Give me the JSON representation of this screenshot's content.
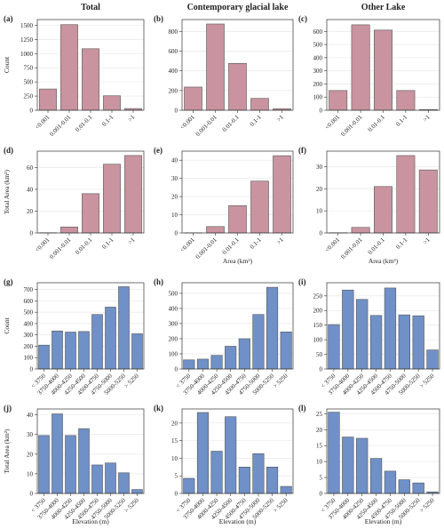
{
  "chart_data": [
    {
      "type": "bar",
      "label": "(a)",
      "title": "Total",
      "ylabel": "Count",
      "categories": [
        "<0.001",
        "0.001-0.01",
        "0.01-0.1",
        "0.1-1",
        ">1"
      ],
      "values": [
        375,
        1510,
        1085,
        255,
        30
      ],
      "color": "#c9949f",
      "ylim": [
        0,
        1600
      ],
      "yticks": [
        0,
        250,
        500,
        750,
        1000,
        1250,
        1500
      ],
      "grid": true
    },
    {
      "type": "bar",
      "label": "(b)",
      "title": "Contemporary glacial lake",
      "categories": [
        "<0.001",
        "0.001-0.01",
        "0.01-0.1",
        "0.1-1",
        ">1"
      ],
      "values": [
        235,
        875,
        475,
        120,
        15
      ],
      "color": "#c9949f",
      "ylim": [
        0,
        920
      ],
      "yticks": [
        0,
        200,
        400,
        600,
        800
      ],
      "grid": true
    },
    {
      "type": "bar",
      "label": "(c)",
      "title": "Other Lake",
      "categories": [
        "<0.001",
        "0.001-0.01",
        "0.01-0.1",
        "0.1-1",
        ">1"
      ],
      "values": [
        150,
        650,
        610,
        150,
        5
      ],
      "color": "#c9949f",
      "ylim": [
        0,
        690
      ],
      "yticks": [
        0,
        100,
        200,
        300,
        400,
        500,
        600
      ],
      "grid": true
    },
    {
      "type": "bar",
      "label": "(d)",
      "ylabel": "Total Area (km²)",
      "categories": [
        "<0.001",
        "0.001-0.01",
        "0.01-0.1",
        "0.1-1",
        ">1"
      ],
      "values": [
        0.2,
        5.5,
        36,
        63,
        71
      ],
      "color": "#c9949f",
      "ylim": [
        0,
        75
      ],
      "yticks": [
        0,
        20,
        40,
        60
      ],
      "grid": true
    },
    {
      "type": "bar",
      "label": "(e)",
      "xlabel": "Area (km²)",
      "categories": [
        "<0.001",
        "0.001-0.01",
        "0.01-0.1",
        "0.1-1",
        ">1"
      ],
      "values": [
        0.1,
        3.5,
        15,
        28.5,
        42.5
      ],
      "color": "#c9949f",
      "ylim": [
        0,
        45
      ],
      "yticks": [
        0,
        10,
        20,
        30,
        40
      ],
      "grid": true
    },
    {
      "type": "bar",
      "label": "(f)",
      "xlabel": "Area (km²)",
      "categories": [
        "<0.001",
        "0.001-0.01",
        "0.01-0.1",
        "0.1-1",
        ">1"
      ],
      "values": [
        0.1,
        2.5,
        21,
        35,
        28.5
      ],
      "color": "#c9949f",
      "ylim": [
        0,
        37
      ],
      "yticks": [
        0,
        10,
        20,
        30
      ],
      "grid": true
    },
    {
      "type": "bar",
      "label": "(g)",
      "ylabel": "Count",
      "categories": [
        "< 3750",
        "3750-4000",
        "4000-4250",
        "4250-4500",
        "4500-4750",
        "4750-5000",
        "5000-5250",
        "> 5250"
      ],
      "values": [
        210,
        335,
        325,
        330,
        480,
        545,
        725,
        310
      ],
      "color": "#7090c8",
      "ylim": [
        0,
        760
      ],
      "yticks": [
        0,
        100,
        200,
        300,
        400,
        500,
        600,
        700
      ],
      "grid": true
    },
    {
      "type": "bar",
      "label": "(h)",
      "categories": [
        "< 3750",
        "3750-4000",
        "4000-4250",
        "4250-4500",
        "4500-4750",
        "4750-5000",
        "5000-5250",
        "> 5250"
      ],
      "values": [
        60,
        65,
        90,
        150,
        200,
        360,
        540,
        245
      ],
      "color": "#7090c8",
      "ylim": [
        0,
        570
      ],
      "yticks": [
        0,
        100,
        200,
        300,
        400,
        500
      ],
      "grid": true
    },
    {
      "type": "bar",
      "label": "(i)",
      "categories": [
        "< 3750",
        "3750-4000",
        "4000-4250",
        "4250-4500",
        "4500-4750",
        "4750-5000",
        "5000-5250",
        "> 5250"
      ],
      "values": [
        152,
        270,
        238,
        183,
        277,
        185,
        182,
        65
      ],
      "color": "#7090c8",
      "ylim": [
        0,
        295
      ],
      "yticks": [
        0,
        50,
        100,
        150,
        200,
        250
      ],
      "grid": true
    },
    {
      "type": "bar",
      "label": "(j)",
      "ylabel": "Total Area (km²)",
      "xlabel": "Elevation (m)",
      "categories": [
        "< 3750",
        "3750-4000",
        "4000-4250",
        "4250-4500",
        "4500-4750",
        "4750-5000",
        "5000-5250",
        "> 5250"
      ],
      "values": [
        29.5,
        40.5,
        29.5,
        33,
        14.5,
        15.5,
        10.5,
        2
      ],
      "color": "#7090c8",
      "ylim": [
        0,
        43
      ],
      "yticks": [
        0,
        10,
        20,
        30,
        40
      ],
      "grid": true
    },
    {
      "type": "bar",
      "label": "(k)",
      "xlabel": "Elevation (m)",
      "categories": [
        "< 3750",
        "3750-4000",
        "4000-4250",
        "4250-4500",
        "4500-4750",
        "4750-5000",
        "5000-5250",
        "> 5250"
      ],
      "values": [
        4.3,
        23,
        12,
        21.8,
        7.5,
        11.3,
        7.5,
        2
      ],
      "color": "#7090c8",
      "ylim": [
        0,
        24
      ],
      "yticks": [
        0,
        5,
        10,
        15,
        20
      ],
      "grid": true
    },
    {
      "type": "bar",
      "label": "(l)",
      "xlabel": "Elevation (m)",
      "categories": [
        "< 3750",
        "3750-4000",
        "4000-4250",
        "4250-4500",
        "4500-4750",
        "4750-5000",
        "5000-5250",
        "> 5250"
      ],
      "values": [
        25.5,
        17.7,
        17.3,
        11,
        7,
        4.3,
        3.3,
        0.5
      ],
      "color": "#7090c8",
      "ylim": [
        0,
        26.5
      ],
      "yticks": [
        0,
        5,
        10,
        15,
        20,
        25
      ],
      "grid": true
    }
  ]
}
